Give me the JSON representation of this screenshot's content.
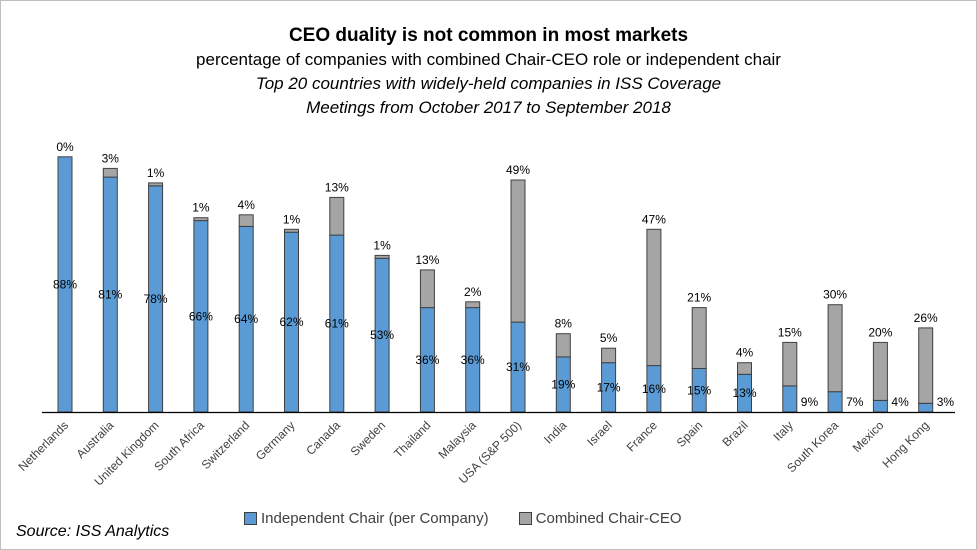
{
  "header": {
    "title": "CEO duality is not common in most markets",
    "subtitle": "percentage of companies with combined Chair-CEO role or independent chair",
    "subtitle2": "Top 20 countries with widely-held companies in ISS Coverage",
    "subtitle3": "Meetings from October 2017 to September 2018"
  },
  "legend": {
    "independent": "Independent Chair (per Company)",
    "combined": "Combined Chair-CEO"
  },
  "source": "Source: ISS Analytics",
  "colors": {
    "independent": "#5b9bd5",
    "combined": "#a5a5a5",
    "outline": "#404040"
  },
  "chart_data": {
    "type": "bar",
    "stacked": true,
    "categories": [
      "Netherlands",
      "Australia",
      "United Kingdom",
      "South Africa",
      "Switzerland",
      "Germany",
      "Canada",
      "Sweden",
      "Thailand",
      "Malaysia",
      "USA (S&P 500)",
      "India",
      "Israel",
      "France",
      "Spain",
      "Brazil",
      "Italy",
      "South Korea",
      "Mexico",
      "Hong Kong"
    ],
    "series": [
      {
        "name": "Independent Chair (per Company)",
        "values": [
          88,
          81,
          78,
          66,
          64,
          62,
          61,
          53,
          36,
          36,
          31,
          19,
          17,
          16,
          15,
          13,
          9,
          7,
          4,
          3
        ],
        "labels": [
          "88%",
          "81%",
          "78%",
          "66%",
          "64%",
          "62%",
          "61%",
          "53%",
          "36%",
          "36%",
          "31%",
          "19%",
          "17%",
          "16%",
          "15%",
          "13%",
          "9%",
          "7%",
          "4%",
          "3%"
        ]
      },
      {
        "name": "Combined Chair-CEO",
        "values": [
          0,
          3,
          1,
          1,
          4,
          1,
          13,
          1,
          13,
          2,
          49,
          8,
          5,
          47,
          21,
          4,
          15,
          30,
          20,
          26
        ],
        "labels": [
          "0%",
          "3%",
          "1%",
          "1%",
          "4%",
          "1%",
          "13%",
          "1%",
          "13%",
          "2%",
          "49%",
          "8%",
          "5%",
          "47%",
          "21%",
          "4%",
          "15%",
          "30%",
          "20%",
          "26%"
        ]
      }
    ],
    "ylim": [
      0,
      100
    ],
    "grid": false,
    "legend_position": "bottom"
  }
}
